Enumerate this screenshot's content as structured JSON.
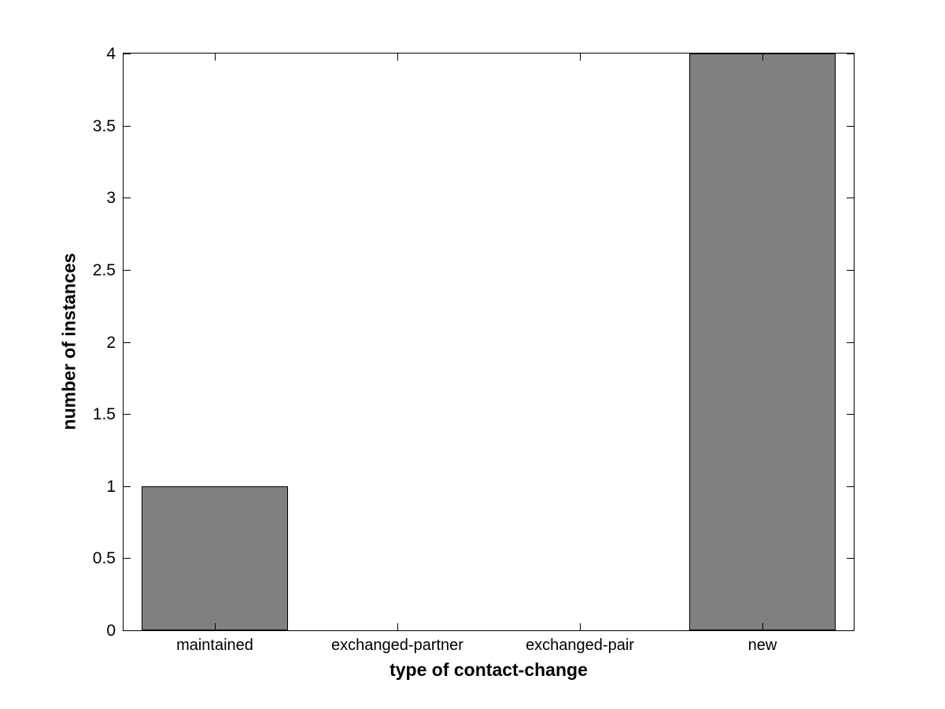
{
  "chart_data": {
    "type": "bar",
    "title": "",
    "categories": [
      "maintained",
      "exchanged-partner",
      "exchanged-pair",
      "new"
    ],
    "values": [
      1,
      0,
      0,
      4
    ],
    "xlabel": "type of contact-change",
    "ylabel": "number of instances",
    "ylim": [
      0,
      4
    ],
    "yticks": [
      0,
      0.5,
      1,
      1.5,
      2,
      2.5,
      3,
      3.5,
      4
    ],
    "ytick_labels": [
      "0",
      "0.5",
      "1",
      "1.5",
      "2",
      "2.5",
      "3",
      "3.5",
      "4"
    ],
    "xlim_units": [
      0.5,
      4.5
    ],
    "bar_width_units": 0.8,
    "grid": false,
    "legend": null,
    "bar_color": "#808080",
    "bar_edge_color": "#000000",
    "axis_color": "#000000",
    "background_color": "#ffffff"
  }
}
